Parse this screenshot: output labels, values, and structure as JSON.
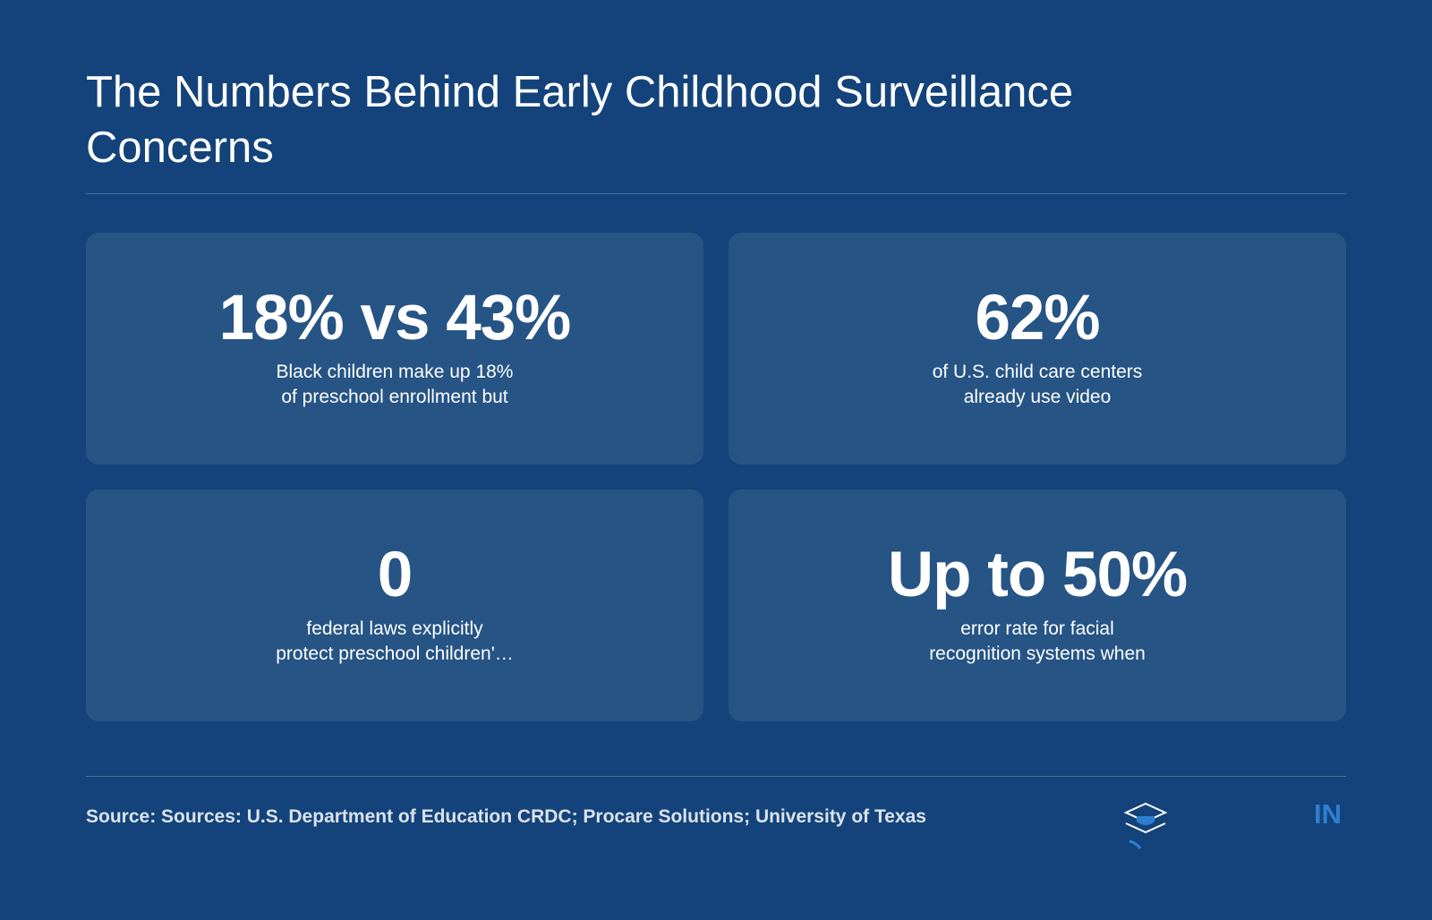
{
  "header": {
    "title": "The Numbers Behind Early Childhood Surveillance Concerns"
  },
  "cards": [
    {
      "value": "18% vs 43%",
      "description_lines": [
        "Black children make up 18%",
        "of preschool enrollment but"
      ]
    },
    {
      "value": "62%",
      "description_lines": [
        "of U.S. child care centers",
        "already use video"
      ]
    },
    {
      "value": "0",
      "description_lines": [
        "federal laws explicitly",
        "protect preschool children'…"
      ]
    },
    {
      "value": "Up to 50%",
      "description_lines": [
        "error rate for facial",
        "recognition systems when"
      ]
    }
  ],
  "footer": {
    "source": "Source: Sources: U.S. Department of Education CRDC; Procare Solutions; University of Texas",
    "brand": "IN"
  }
}
